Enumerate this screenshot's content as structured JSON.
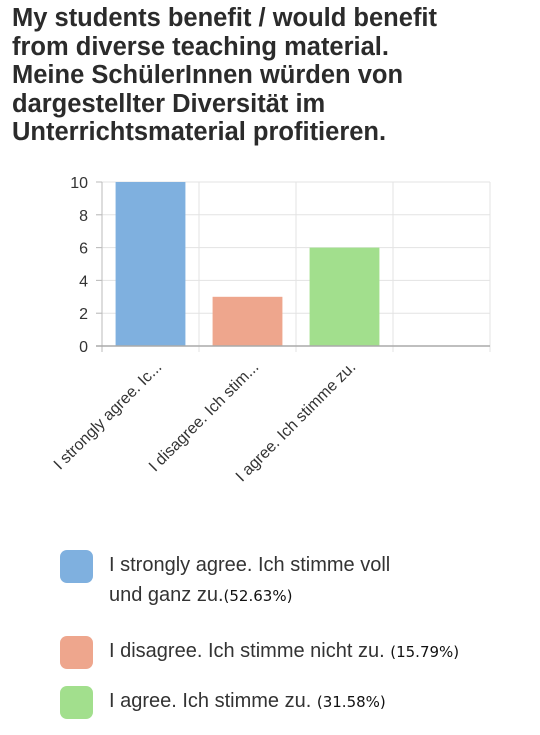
{
  "title_lines": [
    "My students benefit / would benefit",
    "from diverse teaching material.",
    "Meine SchülerInnen würden von",
    "dargestellter Diversität im",
    "Unterrichtsmaterial profitieren."
  ],
  "chart_data": {
    "type": "bar",
    "categories": [
      "I strongly agree. Ic...",
      "I disagree. Ich stim...",
      "I agree. Ich stimme zu."
    ],
    "values": [
      10,
      3,
      6
    ],
    "ylim": [
      0,
      10
    ],
    "yticks": [
      0,
      2,
      4,
      6,
      8,
      10
    ],
    "grid": true,
    "legend_position": "bottom",
    "colors": [
      "#7fb0df",
      "#eea68d",
      "#a2df8d"
    ]
  },
  "legend": [
    {
      "lines": [
        "I strongly agree. Ich stimme voll",
        "und ganz zu."
      ],
      "percent": "(52.63%)",
      "color": "#7fb0df"
    },
    {
      "lines": [
        "I disagree. Ich stimme nicht zu."
      ],
      "percent": "(15.79%)",
      "color": "#eea68d"
    },
    {
      "lines": [
        "I agree. Ich stimme zu."
      ],
      "percent": "(31.58%)",
      "color": "#a2df8d"
    }
  ]
}
